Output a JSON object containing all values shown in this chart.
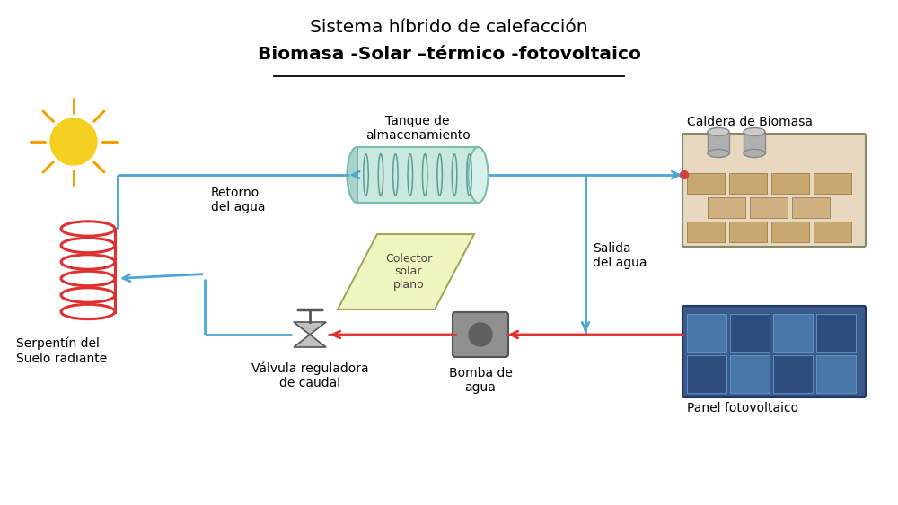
{
  "title_line1": "Sistema híbrido de calefacción",
  "title_line2": "Biomasa -Solar –térmico -fotovoltaico",
  "bg_color": "#ffffff",
  "labels": {
    "caldera": "Caldera de Biomasa",
    "tanque": "Tanque de\nalmacenamiento",
    "colector": "Colector\nsolar\nplano",
    "retorno": "Retorno\ndel agua",
    "salida": "Salida\ndel agua",
    "serpentin": "Serpentín del\nSuelo radiante",
    "valvula": "Válvula reguladora\nde caudal",
    "bomba": "Bomba de\nagua",
    "panel": "Panel fotovoltaico"
  },
  "blue_color": "#4da6d4",
  "red_color": "#e03030",
  "tank_fill": "#c8e8e0",
  "tank_edge": "#7bbcb0",
  "coil_edge": "#5a9e96",
  "collector_fill": "#f0f5c0",
  "collector_edge": "#a0a860",
  "sun_color": "#f5d020",
  "sun_ray_color": "#f5a000",
  "serpentin_color": "#e03030",
  "title_fontsize": 14.5,
  "label_fontsize": 10
}
